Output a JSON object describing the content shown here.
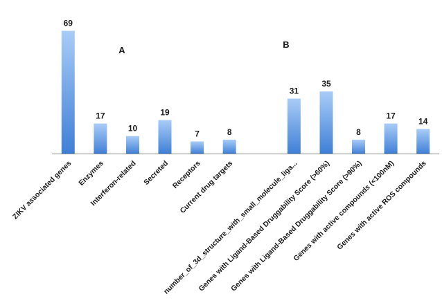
{
  "chart_data": {
    "type": "bar",
    "categories": [
      "ZIKV associated genes",
      "Enzymes",
      "Interferon-related",
      "Secreted",
      "Receptors",
      "Current drug targets",
      "",
      "number_of_3d_structure_with_small_molecule_liga...",
      "Genes with Ligand-Based Druggability Score (>60%)",
      "Genes with Ligand-Based Druggability Score (>90%)",
      "Genes with active compounds (<100nM)",
      "Genes with active ROS compounds"
    ],
    "values": [
      69,
      17,
      10,
      19,
      7,
      8,
      null,
      31,
      35,
      8,
      17,
      14
    ],
    "value_labels": [
      "69",
      "17",
      "10",
      "19",
      "7",
      "8",
      "",
      "31",
      "35",
      "8",
      "17",
      "14"
    ],
    "panel_labels": [
      "A",
      "B"
    ],
    "ylim": [
      0,
      69
    ],
    "grid": false,
    "legend": "none",
    "colors": {
      "bar_top": "#a9ccf7",
      "bar_bottom": "#3f7fd6",
      "axis": "#8c8c8c",
      "text": "#1a1a1a"
    }
  }
}
